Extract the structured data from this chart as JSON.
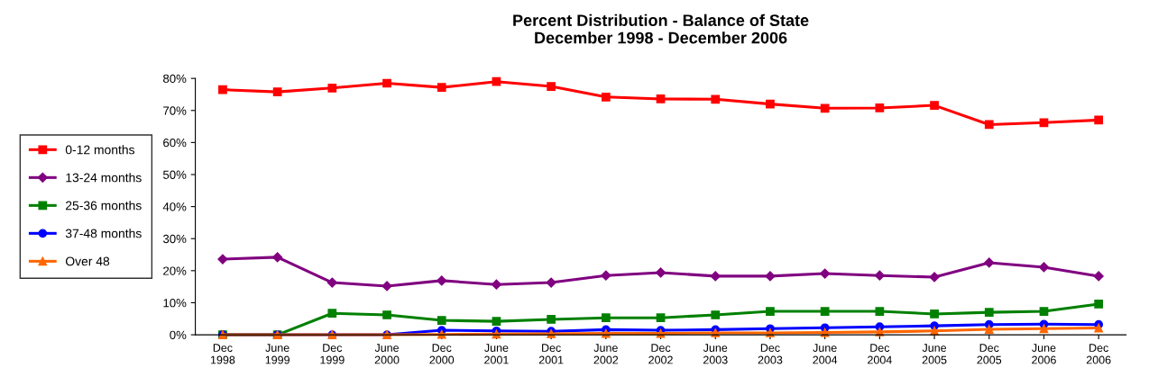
{
  "chart_data": {
    "type": "line",
    "title": "Percent Distribution - Balance of State\nDecember 1998 - December 2006",
    "categories": [
      "Dec\n1998",
      "June\n1999",
      "Dec\n1999",
      "June\n2000",
      "Dec\n2000",
      "June\n2001",
      "Dec\n2001",
      "June\n2002",
      "Dec\n2002",
      "June\n2003",
      "Dec\n2003",
      "June\n2004",
      "Dec\n2004",
      "June\n2005",
      "Dec\n2005",
      "June\n2006",
      "Dec\n2006"
    ],
    "series": [
      {
        "name": "0-12 months",
        "color": "#ff0000",
        "marker": "square",
        "values": [
          76.5,
          75.8,
          77.0,
          78.5,
          77.2,
          79.0,
          77.5,
          74.2,
          73.6,
          73.5,
          72.0,
          70.7,
          70.8,
          71.6,
          65.6,
          66.2,
          67.0
        ]
      },
      {
        "name": "13-24 months",
        "color": "#800080",
        "marker": "diamond",
        "values": [
          23.6,
          24.2,
          16.3,
          15.2,
          16.9,
          15.7,
          16.3,
          18.5,
          19.4,
          18.3,
          18.3,
          19.1,
          18.5,
          18.0,
          22.5,
          21.1,
          18.3
        ]
      },
      {
        "name": "25-36 months",
        "color": "#008000",
        "marker": "square",
        "values": [
          0.0,
          0.0,
          6.7,
          6.2,
          4.5,
          4.2,
          4.8,
          5.3,
          5.3,
          6.2,
          7.3,
          7.3,
          7.3,
          6.5,
          7.0,
          7.3,
          9.6
        ]
      },
      {
        "name": "37-48 months",
        "color": "#0000ff",
        "marker": "circle",
        "values": [
          0.0,
          0.0,
          0.0,
          0.0,
          1.4,
          1.2,
          1.1,
          1.6,
          1.4,
          1.6,
          1.9,
          2.2,
          2.5,
          2.8,
          3.2,
          3.3,
          3.2
        ]
      },
      {
        "name": "Over 48",
        "color": "#ff6600",
        "marker": "triangle",
        "values": [
          0.0,
          0.0,
          0.0,
          0.0,
          0.1,
          0.2,
          0.3,
          0.4,
          0.4,
          0.6,
          0.6,
          0.7,
          0.9,
          1.2,
          1.7,
          1.9,
          2.1
        ]
      }
    ],
    "ylim": [
      0,
      80
    ],
    "yticks": [
      {
        "value": 0,
        "label": "0%"
      },
      {
        "value": 10,
        "label": "10%"
      },
      {
        "value": 20,
        "label": "20%"
      },
      {
        "value": 30,
        "label": "30%"
      },
      {
        "value": 40,
        "label": "40%"
      },
      {
        "value": 50,
        "label": "50%"
      },
      {
        "value": 60,
        "label": "60%"
      },
      {
        "value": 70,
        "label": "70%"
      },
      {
        "value": 80,
        "label": "80%"
      }
    ],
    "grid": false,
    "legend": "left",
    "line_style": "solid"
  }
}
